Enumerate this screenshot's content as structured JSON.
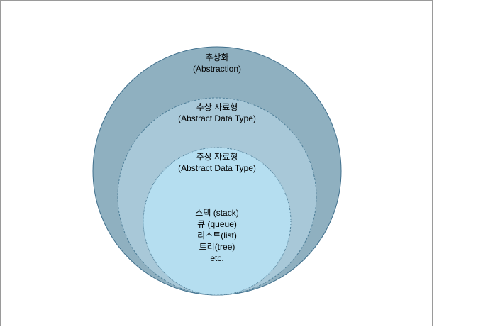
{
  "diagram": {
    "outer": {
      "title": "추상화",
      "subtitle": "(Abstraction)",
      "fill": "#8fb0c0",
      "stroke": "#3f6f8c"
    },
    "middle": {
      "title": "추상 자료형",
      "subtitle": "(Abstract Data Type)",
      "fill": "#a8c8d8",
      "stroke": "#4f7f99"
    },
    "inner": {
      "title": "추상 자료형",
      "subtitle": "(Abstract Data Type)",
      "fill": "#b5def0",
      "stroke": "#4f7f99"
    },
    "items": [
      "스택 (stack)",
      "큐 (queue)",
      "리스트(list)",
      "트리(tree)",
      "etc."
    ]
  }
}
